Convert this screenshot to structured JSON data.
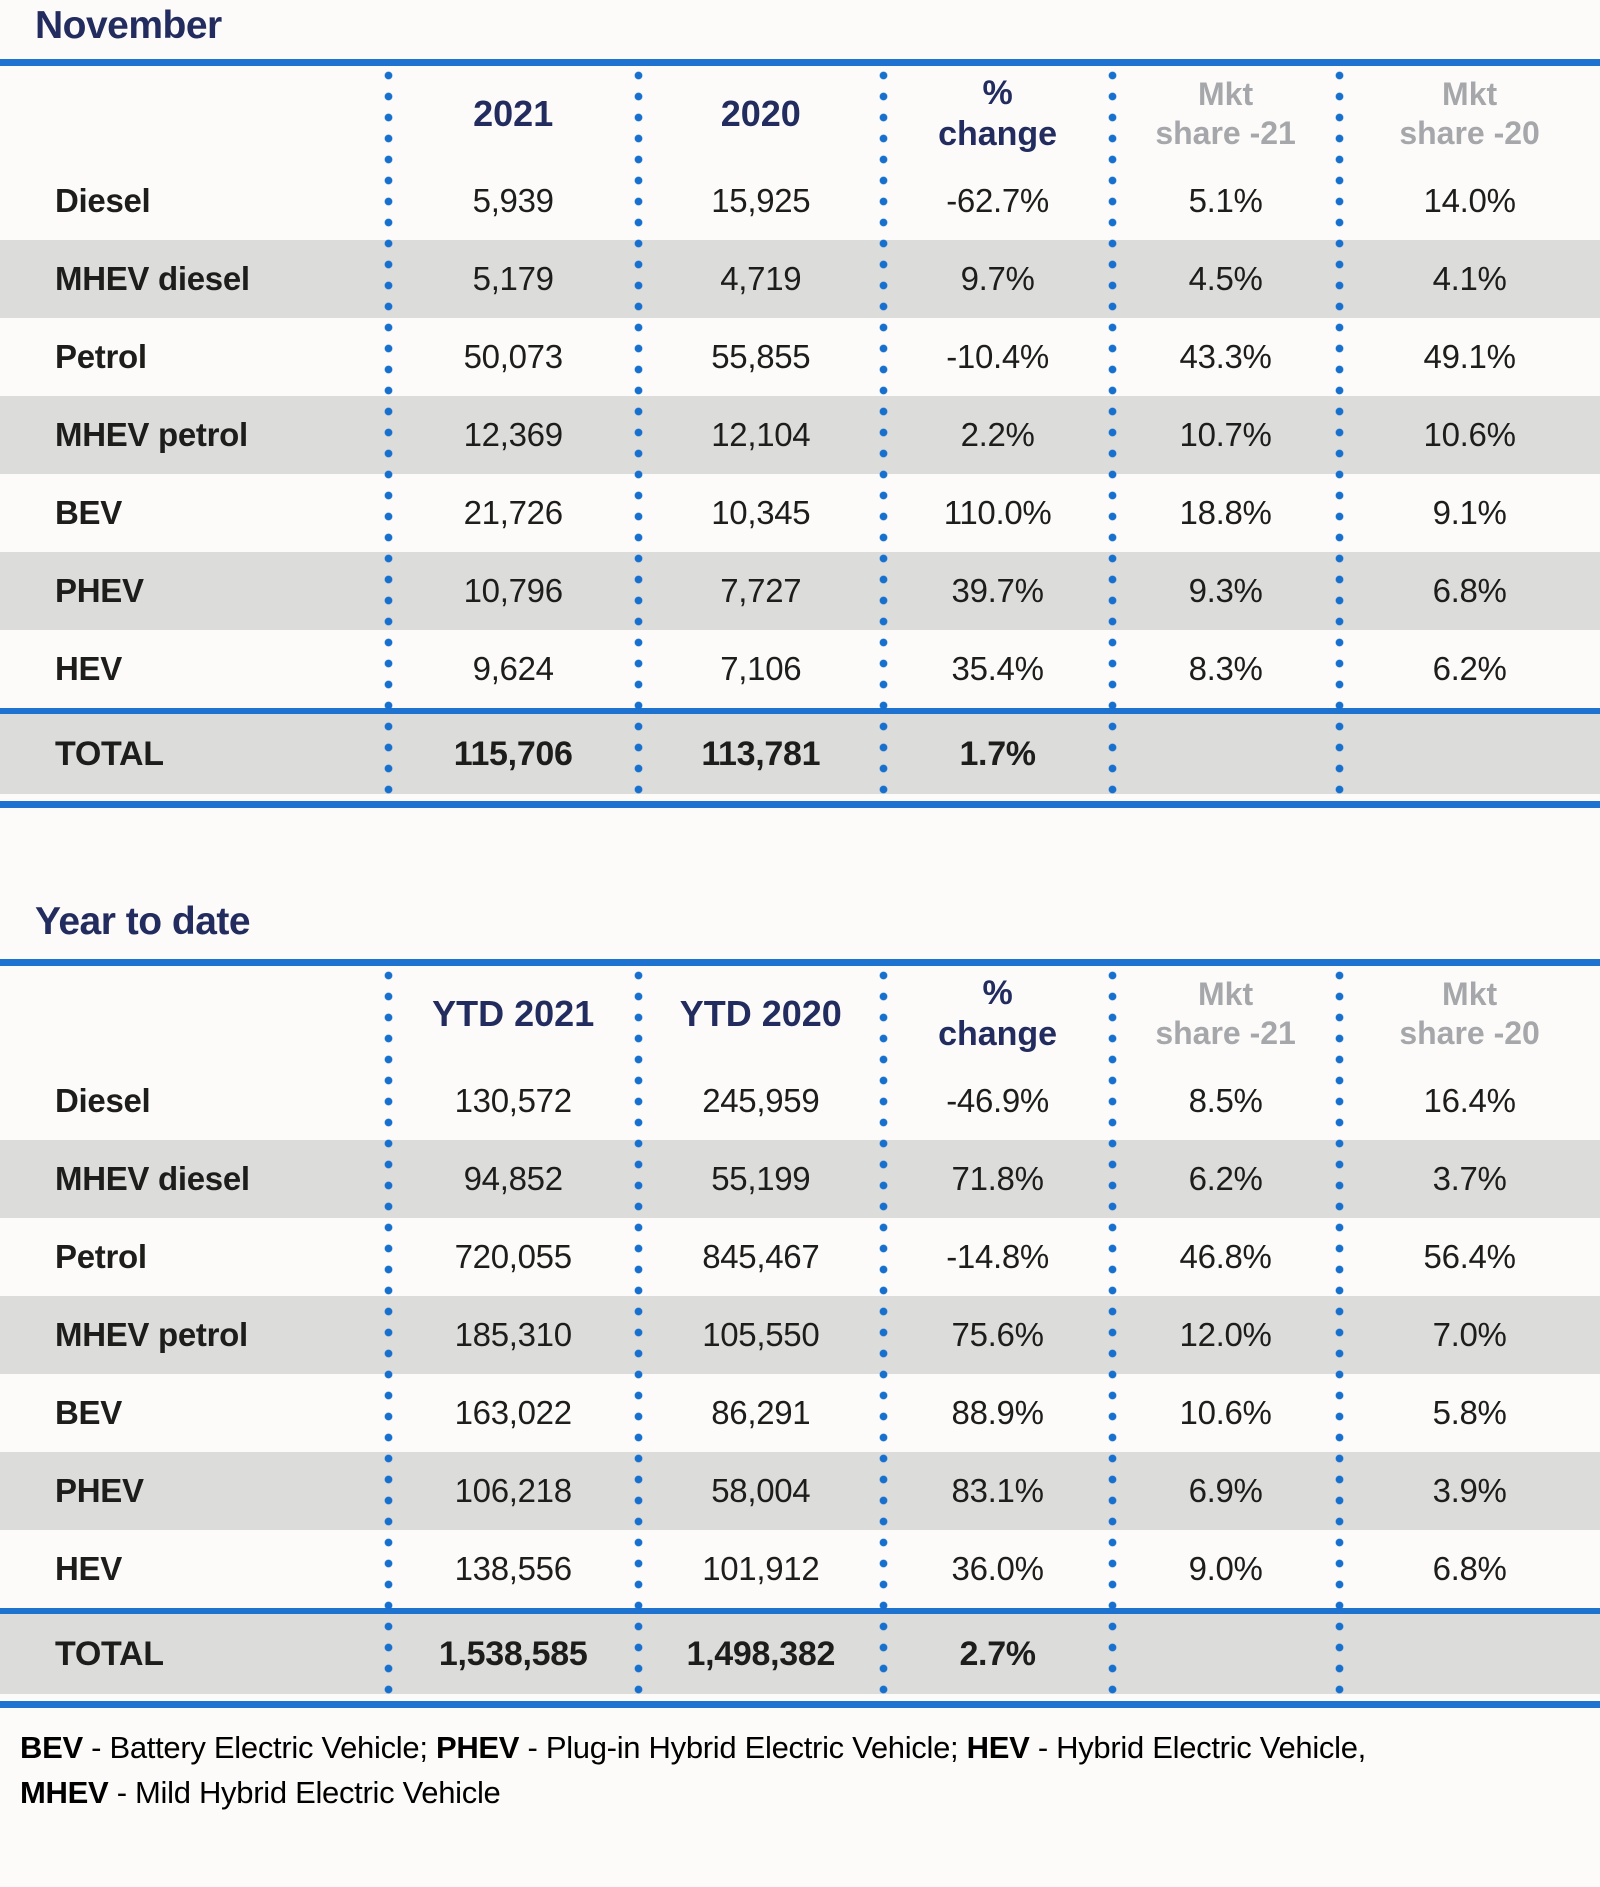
{
  "colors": {
    "navy_heading": "#232c5e",
    "rule_blue": "#1e73d1",
    "dot_blue": "#176fce",
    "muted_header_gray": "#a5a7aa",
    "row_stripe_gray": "#dcdcdb",
    "body_text": "#1d1d1b",
    "background": "#fcfbf9"
  },
  "chart_data": [
    {
      "type": "table",
      "title": "November",
      "columns": [
        "",
        "2021",
        "2020",
        "% change",
        "Mkt share -21",
        "Mkt share -20"
      ],
      "rows": [
        [
          "Diesel",
          "5,939",
          "15,925",
          "-62.7%",
          "5.1%",
          "14.0%"
        ],
        [
          "MHEV diesel",
          "5,179",
          "4,719",
          "9.7%",
          "4.5%",
          "4.1%"
        ],
        [
          "Petrol",
          "50,073",
          "55,855",
          "-10.4%",
          "43.3%",
          "49.1%"
        ],
        [
          "MHEV petrol",
          "12,369",
          "12,104",
          "2.2%",
          "10.7%",
          "10.6%"
        ],
        [
          "BEV",
          "21,726",
          "10,345",
          "110.0%",
          "18.8%",
          "9.1%"
        ],
        [
          "PHEV",
          "10,796",
          "7,727",
          "39.7%",
          "9.3%",
          "6.8%"
        ],
        [
          "HEV",
          "9,624",
          "7,106",
          "35.4%",
          "8.3%",
          "6.2%"
        ],
        [
          "TOTAL",
          "115,706",
          "113,781",
          "1.7%",
          "",
          ""
        ]
      ]
    },
    {
      "type": "table",
      "title": "Year to date",
      "columns": [
        "",
        "YTD 2021",
        "YTD 2020",
        "% change",
        "Mkt share -21",
        "Mkt share -20"
      ],
      "rows": [
        [
          "Diesel",
          "130,572",
          "245,959",
          "-46.9%",
          "8.5%",
          "16.4%"
        ],
        [
          "MHEV diesel",
          "94,852",
          "55,199",
          "71.8%",
          "6.2%",
          "3.7%"
        ],
        [
          "Petrol",
          "720,055",
          "845,467",
          "-14.8%",
          "46.8%",
          "56.4%"
        ],
        [
          "MHEV petrol",
          "185,310",
          "105,550",
          "75.6%",
          "12.0%",
          "7.0%"
        ],
        [
          "BEV",
          "163,022",
          "86,291",
          "88.9%",
          "10.6%",
          "5.8%"
        ],
        [
          "PHEV",
          "106,218",
          "58,004",
          "83.1%",
          "6.9%",
          "3.9%"
        ],
        [
          "HEV",
          "138,556",
          "101,912",
          "36.0%",
          "9.0%",
          "6.8%"
        ],
        [
          "TOTAL",
          "1,538,585",
          "1,498,382",
          "2.7%",
          "",
          ""
        ]
      ]
    }
  ],
  "header_display": [
    {
      "cols": [
        {
          "lines": [
            "2021",
            ""
          ]
        },
        {
          "lines": [
            "2020",
            ""
          ]
        },
        {
          "lines": [
            "%",
            "change"
          ]
        },
        {
          "lines": [
            "Mkt",
            "share -21"
          ]
        },
        {
          "lines": [
            "Mkt",
            "share -20"
          ]
        }
      ]
    },
    {
      "cols": [
        {
          "lines": [
            "YTD 2021",
            ""
          ]
        },
        {
          "lines": [
            "YTD 2020",
            ""
          ]
        },
        {
          "lines": [
            "%",
            "change"
          ]
        },
        {
          "lines": [
            "Mkt",
            "share -21"
          ]
        },
        {
          "lines": [
            "Mkt",
            "share -20"
          ]
        }
      ]
    }
  ],
  "footer": {
    "lines": [
      [
        {
          "t": "BEV",
          "b": true
        },
        {
          "t": " - Battery Electric Vehicle; ",
          "b": false
        },
        {
          "t": "PHEV",
          "b": true
        },
        {
          "t": " - Plug-in Hybrid Electric Vehicle; ",
          "b": false
        },
        {
          "t": "HEV",
          "b": true
        },
        {
          "t": " - Hybrid Electric Vehicle,",
          "b": false
        }
      ],
      [
        {
          "t": "MHEV",
          "b": true
        },
        {
          "t": " - Mild Hybrid Electric Vehicle",
          "b": false
        }
      ]
    ]
  }
}
